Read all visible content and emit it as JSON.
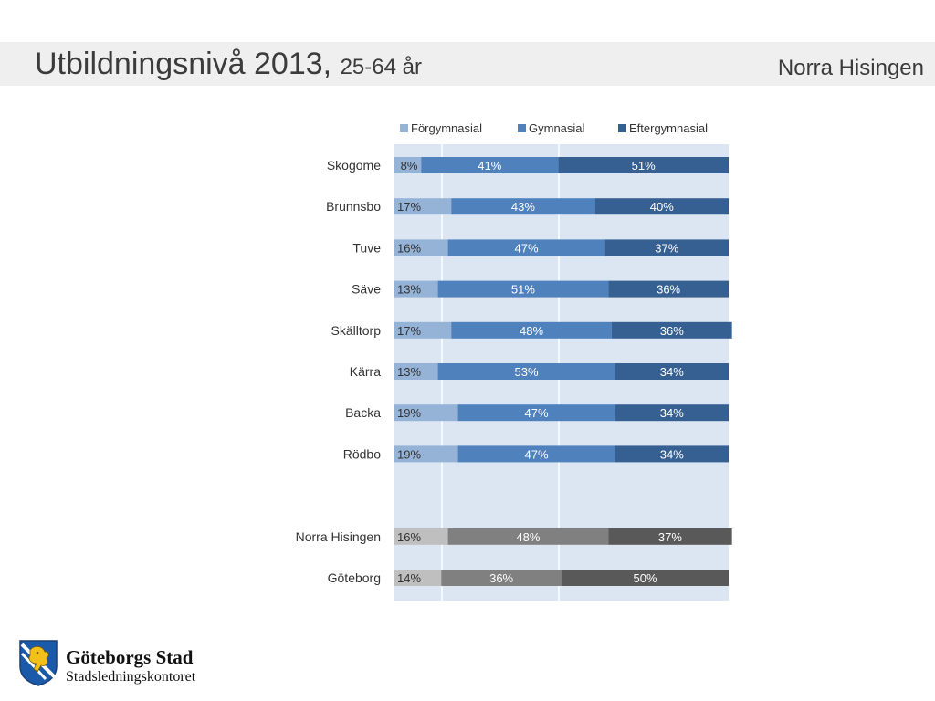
{
  "header": {
    "title": "Utbildningsnivå 2013,",
    "subtitle": "25-64 år",
    "region": "Norra Hisingen"
  },
  "footer": {
    "org": "Göteborgs Stad",
    "dept": "Stadsledningskontoret"
  },
  "chart_data": {
    "type": "bar",
    "orientation": "horizontal",
    "stacked": true,
    "legend_position": "top",
    "categories": [
      "Skogome",
      "Brunnsbo",
      "Tuve",
      "Säve",
      "Skälltorp",
      "Kärra",
      "Backa",
      "Rödbo",
      "",
      "Norra Hisingen",
      "Göteborg"
    ],
    "series": [
      {
        "name": "Förgymnasial",
        "color": "#95b3d7",
        "values": [
          8,
          17,
          16,
          13,
          17,
          13,
          19,
          19,
          null,
          16,
          14
        ],
        "labels": [
          "8%",
          "17%",
          "16%",
          "13%",
          "17%",
          "13%",
          "19%",
          "19%",
          "",
          "16%",
          "14%"
        ]
      },
      {
        "name": "Gymnasial",
        "color": "#4f81bd",
        "values": [
          41,
          43,
          47,
          51,
          48,
          53,
          47,
          47,
          null,
          48,
          36
        ],
        "labels": [
          "41%",
          "43%",
          "47%",
          "51%",
          "48%",
          "53%",
          "47%",
          "47%",
          "",
          "48%",
          "36%"
        ]
      },
      {
        "name": "Eftergymnasial",
        "color": "#376092",
        "values": [
          51,
          40,
          37,
          36,
          36,
          34,
          34,
          34,
          null,
          37,
          50
        ],
        "labels": [
          "51%",
          "40%",
          "37%",
          "36%",
          "36%",
          "34%",
          "34%",
          "34%",
          "",
          "37%",
          "50%"
        ]
      }
    ],
    "summary_colors": [
      "#bfbfbf",
      "#808080",
      "#595959"
    ],
    "xlim": [
      0,
      100
    ],
    "plot_background": "#dce6f2"
  }
}
